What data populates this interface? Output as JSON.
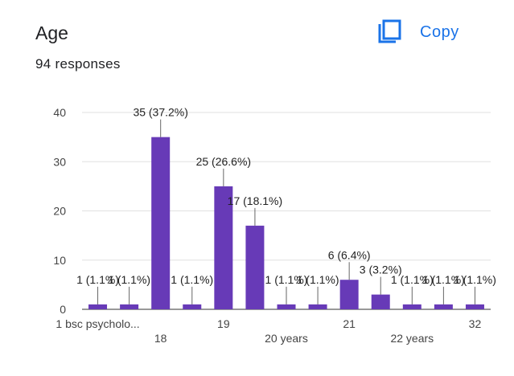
{
  "header": {
    "title": "Age",
    "responses": "94 responses",
    "copy_label": "Copy"
  },
  "colors": {
    "bar": "#673ab7",
    "accent": "#1a73e8",
    "grid": "#e0e0e0"
  },
  "icons": {
    "copy": "copy-icon"
  },
  "chart_data": {
    "type": "bar",
    "categories": [
      "1 bsc psycholo...",
      "",
      "18",
      "",
      "19",
      "",
      "20 years",
      "",
      "21",
      "",
      "22 years",
      "",
      "32"
    ],
    "values": [
      1,
      1,
      35,
      1,
      25,
      17,
      1,
      1,
      6,
      3,
      1,
      1,
      1
    ],
    "data_labels": [
      "1 (1.1%)",
      "1 (1.1%)",
      "35 (37.2%)",
      "1 (1.1%)",
      "25 (26.6%)",
      "17 (18.1%)",
      "1 (1.1%)",
      "1 (1.1%)",
      "6 (6.4%)",
      "3 (3.2%)",
      "1 (1.1%)",
      "1 (1.1%)",
      "1 (1.1%)"
    ],
    "ylim": [
      0,
      40
    ],
    "yticks": [
      0,
      10,
      20,
      30,
      40
    ],
    "grid": true
  }
}
